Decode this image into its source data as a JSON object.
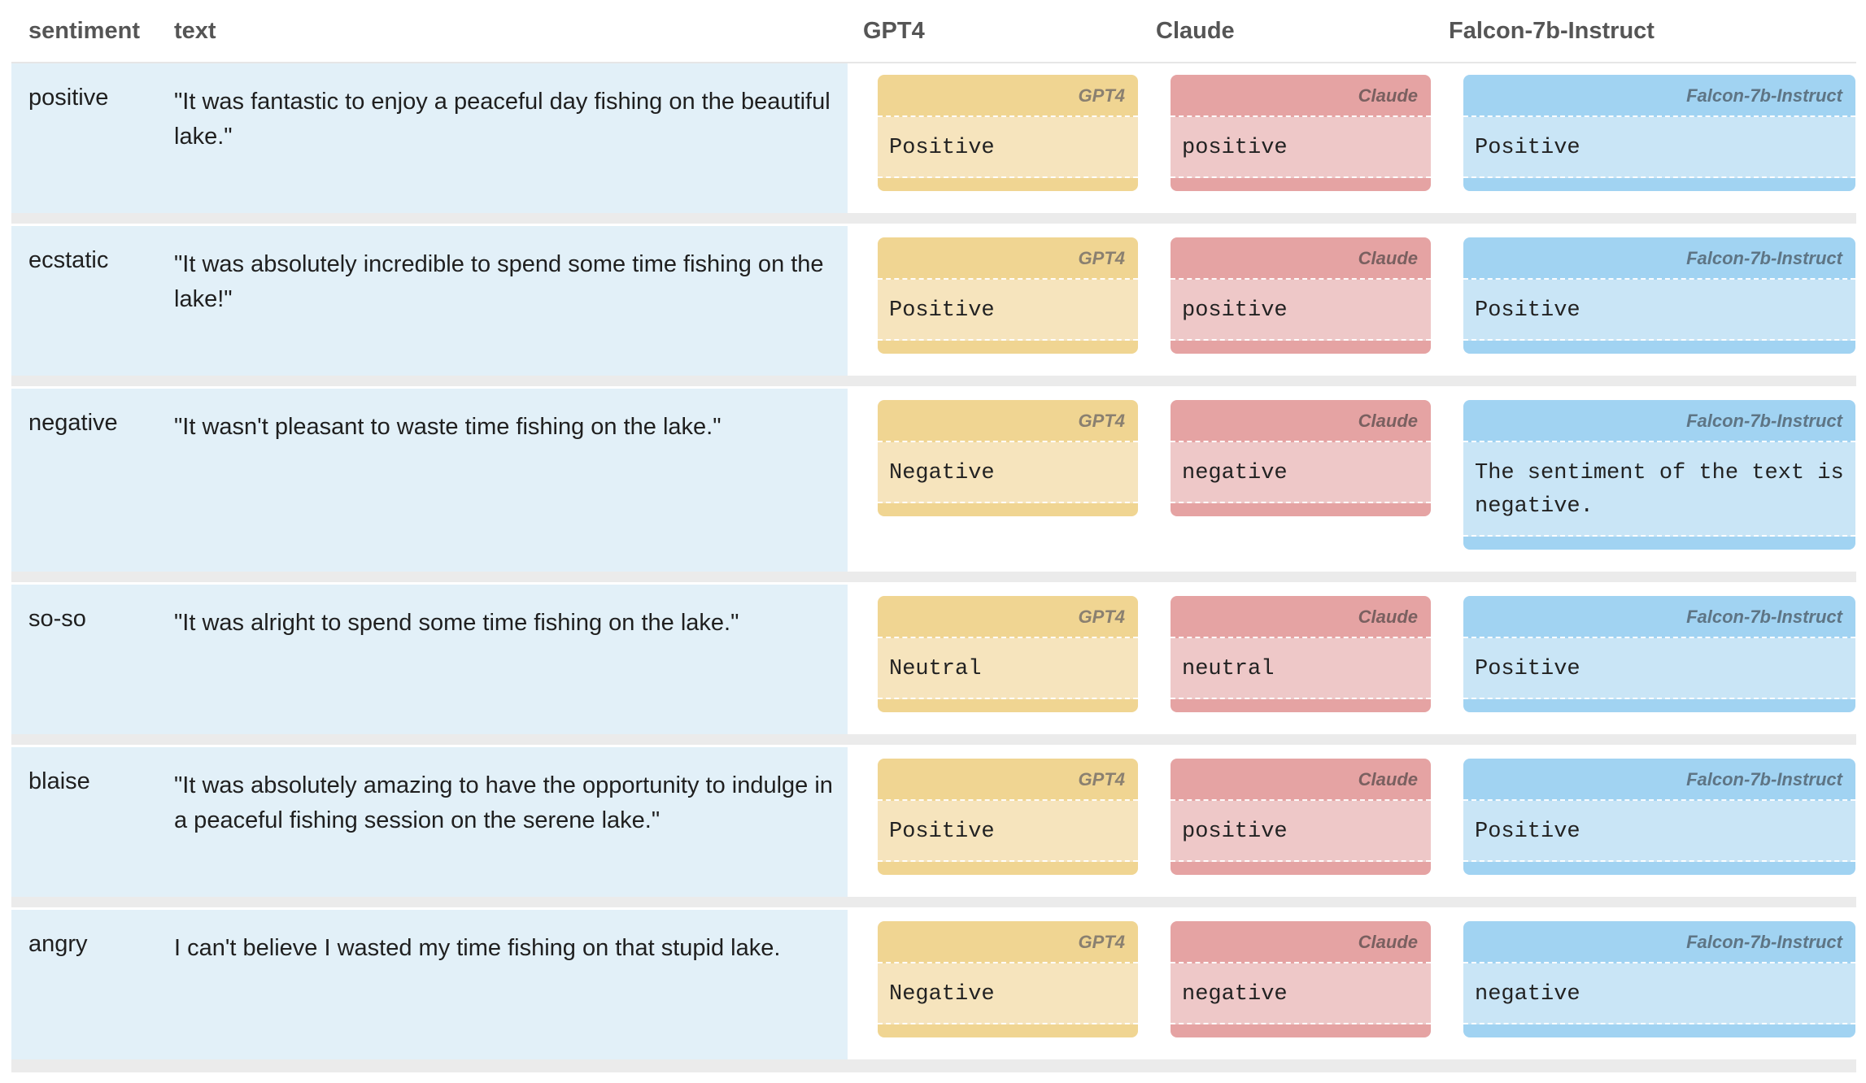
{
  "headers": {
    "sentiment": "sentiment",
    "text": "text",
    "gpt4": "GPT4",
    "claude": "Claude",
    "falcon": "Falcon-7b-Instruct"
  },
  "card_labels": {
    "gpt4": "GPT4",
    "claude": "Claude",
    "falcon": "Falcon-7b-Instruct"
  },
  "rows": [
    {
      "sentiment": "positive",
      "text": "\"It was fantastic to enjoy a peaceful day fishing on the beautiful lake.\"",
      "gpt4": "Positive",
      "claude": "positive",
      "falcon": "Positive"
    },
    {
      "sentiment": "ecstatic",
      "text": "\"It was absolutely incredible to spend some time fishing on the lake!\"",
      "gpt4": "Positive",
      "claude": "positive",
      "falcon": "Positive"
    },
    {
      "sentiment": "negative",
      "text": "\"It wasn't pleasant to waste time fishing on the lake.\"",
      "gpt4": "Negative",
      "claude": "negative",
      "falcon": "The sentiment of the text is negative."
    },
    {
      "sentiment": "so-so",
      "text": "\"It was alright to spend some time fishing on the lake.\"",
      "gpt4": "Neutral",
      "claude": "neutral",
      "falcon": "Positive"
    },
    {
      "sentiment": "blaise",
      "text": "\"It was absolutely amazing to have the opportunity to indulge in a peaceful fishing session on the serene lake.\"",
      "gpt4": "Positive",
      "claude": "positive",
      "falcon": "Positive"
    },
    {
      "sentiment": "angry",
      "text": "I can't believe I wasted my time fishing on that stupid lake.",
      "gpt4": "Negative",
      "claude": "negative",
      "falcon": "negative"
    }
  ],
  "colors": {
    "gpt4_header": "#f0d592",
    "claude_header": "#e5a3a3",
    "falcon_header": "#a1d3f2",
    "left_panel": "#e2f0f8"
  }
}
